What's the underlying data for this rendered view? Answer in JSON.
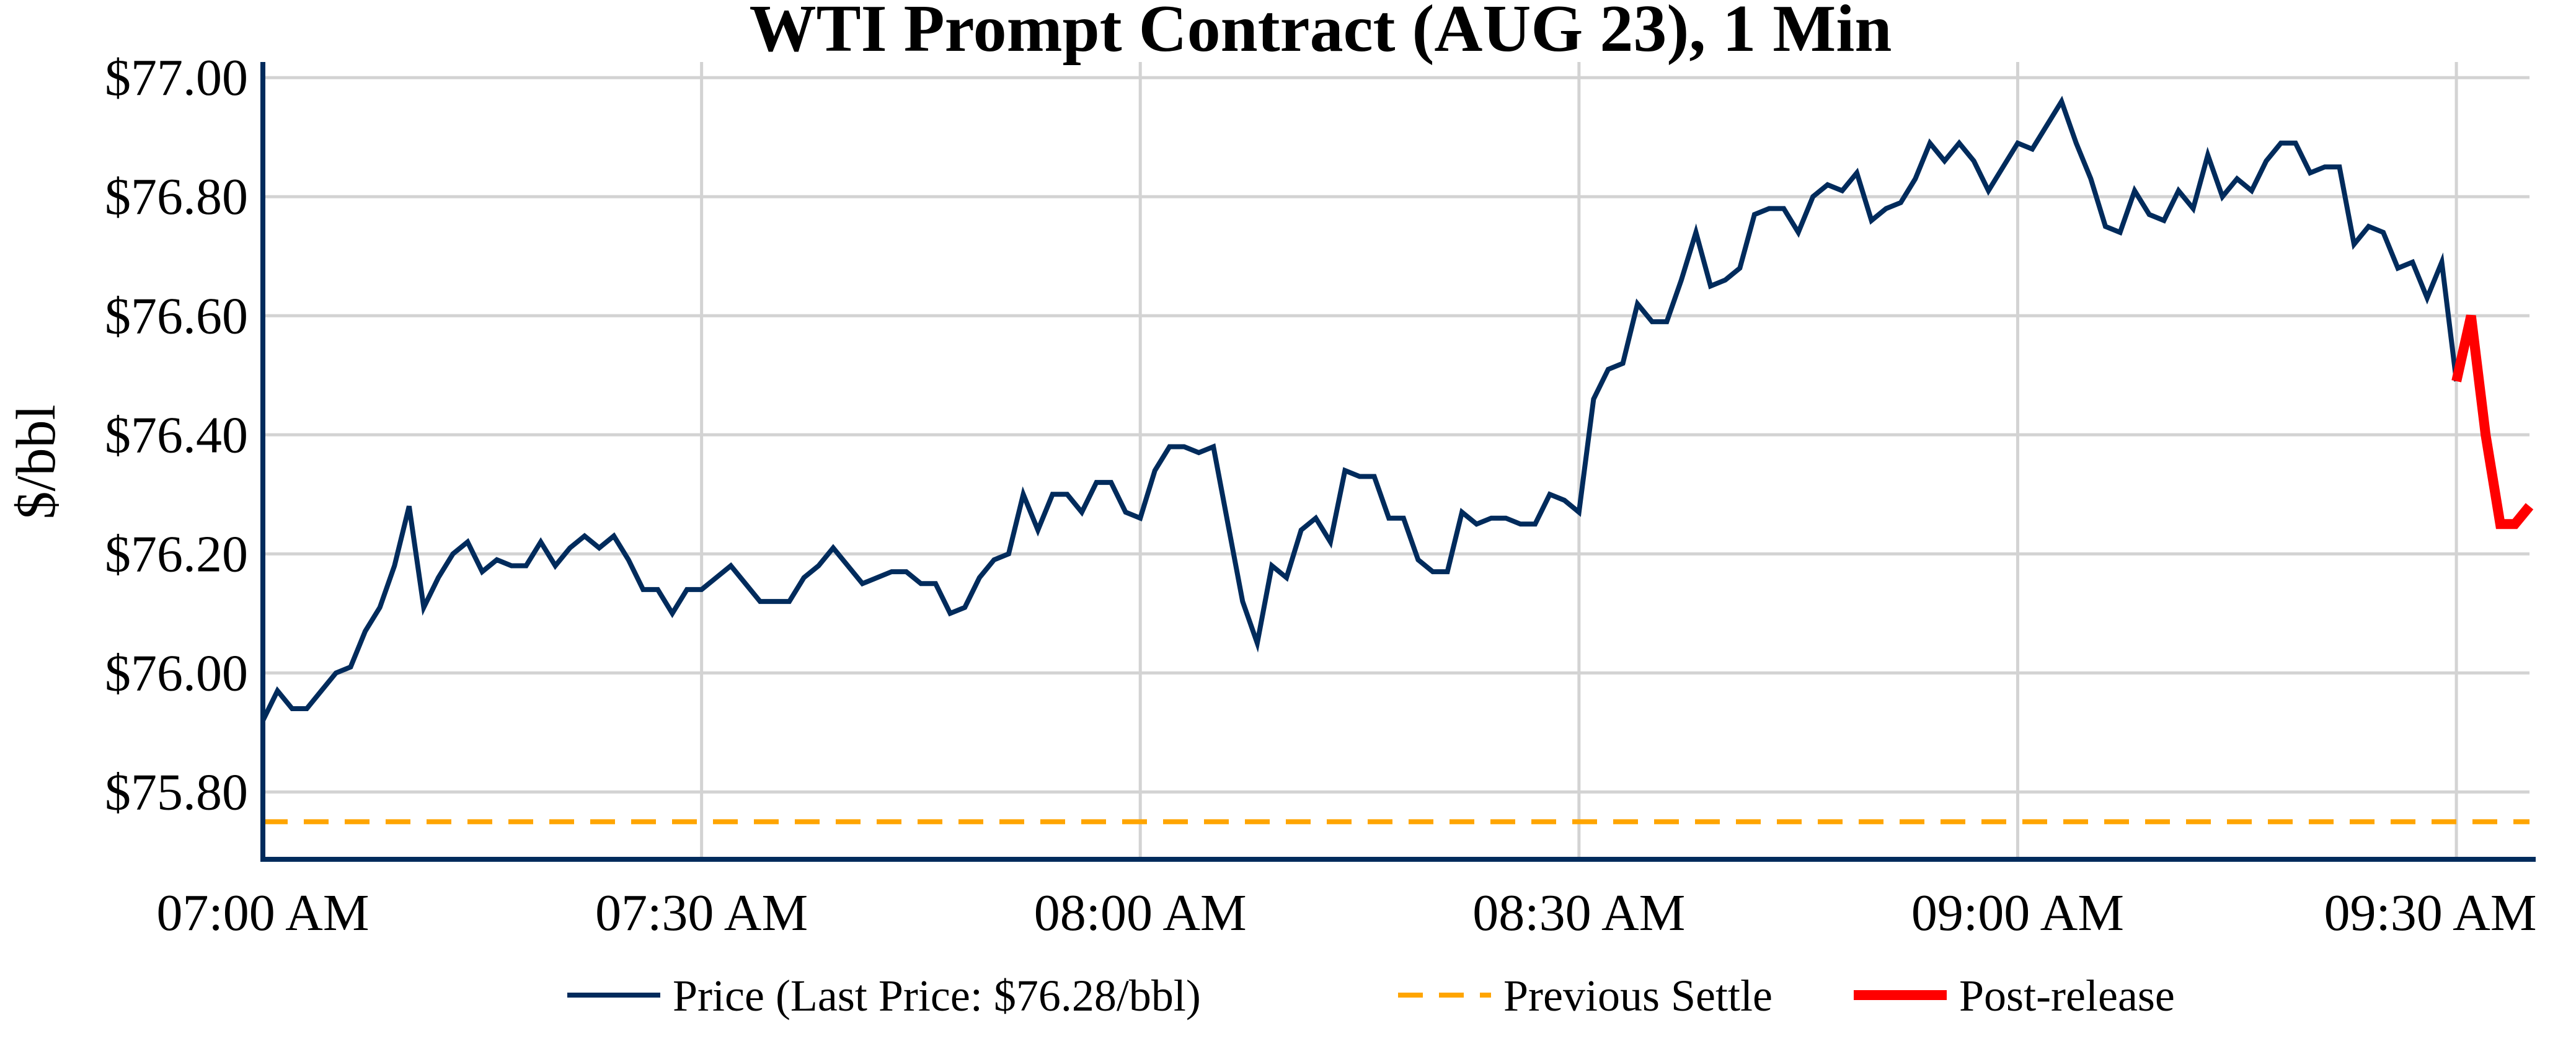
{
  "chart_data": {
    "type": "line",
    "title": "WTI Prompt Contract (AUG 23), 1 Min",
    "xlabel": "",
    "ylabel": "$/bbl",
    "x_unit": "minutes after 07:00 AM",
    "xlim": [
      0,
      155
    ],
    "ylim": [
      75.69,
      77.02
    ],
    "grid": true,
    "legend_position": "bottom-center",
    "x_ticks": [
      {
        "value": 0,
        "label": "07:00 AM"
      },
      {
        "value": 30,
        "label": "07:30 AM"
      },
      {
        "value": 60,
        "label": "08:00 AM"
      },
      {
        "value": 90,
        "label": "08:30 AM"
      },
      {
        "value": 120,
        "label": "09:00 AM"
      },
      {
        "value": 150,
        "label": "09:30 AM"
      }
    ],
    "y_ticks": [
      {
        "value": 75.8,
        "label": "$75.80"
      },
      {
        "value": 76.0,
        "label": "$76.00"
      },
      {
        "value": 76.2,
        "label": "$76.20"
      },
      {
        "value": 76.4,
        "label": "$76.40"
      },
      {
        "value": 76.6,
        "label": "$76.60"
      },
      {
        "value": 76.8,
        "label": "$76.80"
      },
      {
        "value": 77.0,
        "label": "$77.00"
      }
    ],
    "series": [
      {
        "name": "Price (Last Price: $76.28/bbl)",
        "color": "#002b5c",
        "style": "solid",
        "x_start": 0,
        "values": [
          75.92,
          75.97,
          75.94,
          75.94,
          75.97,
          76.0,
          76.01,
          76.07,
          76.11,
          76.18,
          76.28,
          76.11,
          76.16,
          76.2,
          76.22,
          76.17,
          76.19,
          76.18,
          76.18,
          76.22,
          76.18,
          76.21,
          76.23,
          76.21,
          76.23,
          76.19,
          76.14,
          76.14,
          76.1,
          76.14,
          76.14,
          76.16,
          76.18,
          76.15,
          76.12,
          76.12,
          76.12,
          76.16,
          76.18,
          76.21,
          76.18,
          76.15,
          76.16,
          76.17,
          76.17,
          76.15,
          76.15,
          76.1,
          76.11,
          76.16,
          76.19,
          76.2,
          76.3,
          76.24,
          76.3,
          76.3,
          76.27,
          76.32,
          76.32,
          76.27,
          76.26,
          76.34,
          76.38,
          76.38,
          76.37,
          76.38,
          76.25,
          76.12,
          76.05,
          76.18,
          76.16,
          76.24,
          76.26,
          76.22,
          76.34,
          76.33,
          76.33,
          76.26,
          76.26,
          76.19,
          76.17,
          76.17,
          76.27,
          76.25,
          76.26,
          76.26,
          76.25,
          76.25,
          76.3,
          76.29,
          76.27,
          76.46,
          76.51,
          76.52,
          76.62,
          76.59,
          76.59,
          76.66,
          76.74,
          76.65,
          76.66,
          76.68,
          76.77,
          76.78,
          76.78,
          76.74,
          76.8,
          76.82,
          76.81,
          76.84,
          76.76,
          76.78,
          76.79,
          76.83,
          76.89,
          76.86,
          76.89,
          76.86,
          76.81,
          76.85,
          76.89,
          76.88,
          76.92,
          76.96,
          76.89,
          76.83,
          76.75,
          76.74,
          76.81,
          76.77,
          76.76,
          76.81,
          76.78,
          76.87,
          76.8,
          76.83,
          76.81,
          76.86,
          76.89,
          76.89,
          76.84,
          76.85,
          76.85,
          76.72,
          76.75,
          76.74,
          76.68,
          76.69,
          76.63,
          76.69,
          76.49
        ]
      },
      {
        "name": "Previous Settle",
        "color": "#ffa500",
        "style": "dashed",
        "x": [
          0,
          155
        ],
        "values": [
          75.75,
          75.75
        ]
      },
      {
        "name": "Post-release",
        "color": "#ff0000",
        "style": "solid-thick",
        "x_start": 150,
        "values": [
          76.49,
          76.6,
          76.4,
          76.25,
          76.25,
          76.28
        ]
      }
    ]
  }
}
